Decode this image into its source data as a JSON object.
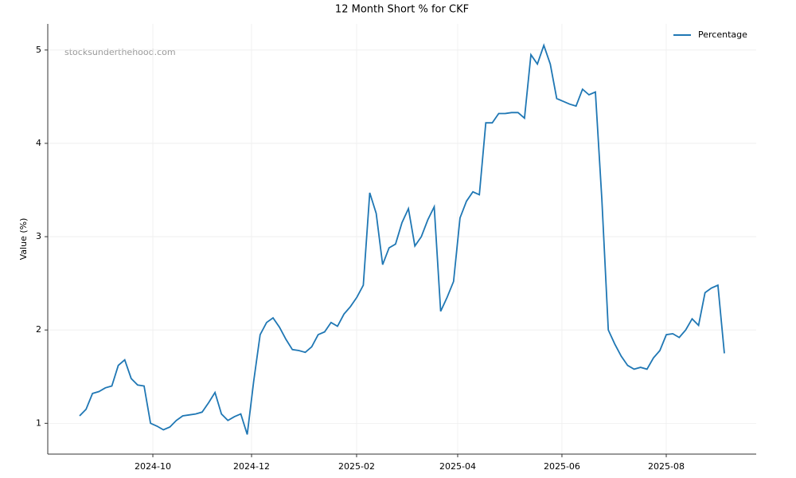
{
  "chart_data": {
    "type": "line",
    "title": "12 Month Short % for CKF",
    "ylabel": "Value (%)",
    "watermark": "stocksunderthehood.com",
    "legend": "upper right",
    "grid": true,
    "xlim": [
      -4.94,
      104.94
    ],
    "xticks": [
      {
        "value": 11.36,
        "label": "2024-10"
      },
      {
        "value": 26.67,
        "label": "2024-12"
      },
      {
        "value": 42.96,
        "label": "2025-02"
      },
      {
        "value": 58.64,
        "label": "2025-04"
      },
      {
        "value": 74.81,
        "label": "2025-06"
      },
      {
        "value": 90.99,
        "label": "2025-08"
      }
    ],
    "ylim": [
      0.67,
      5.28
    ],
    "yticks": [
      1,
      2,
      3,
      4,
      5
    ],
    "series": [
      {
        "name": "Percentage",
        "color": "#1f77b4",
        "values": [
          1.08,
          1.15,
          1.32,
          1.34,
          1.38,
          1.4,
          1.62,
          1.68,
          1.48,
          1.41,
          1.4,
          1.0,
          0.97,
          0.93,
          0.96,
          1.03,
          1.08,
          1.09,
          1.1,
          1.12,
          1.22,
          1.33,
          1.1,
          1.03,
          1.07,
          1.1,
          0.88,
          1.45,
          1.95,
          2.08,
          2.13,
          2.03,
          1.9,
          1.79,
          1.78,
          1.76,
          1.82,
          1.95,
          1.98,
          2.08,
          2.04,
          2.17,
          2.25,
          2.35,
          2.48,
          3.47,
          3.25,
          2.7,
          2.88,
          2.92,
          3.15,
          3.3,
          2.9,
          3.0,
          3.18,
          3.32,
          2.2,
          2.35,
          2.52,
          3.2,
          3.38,
          3.48,
          3.45,
          4.22,
          4.22,
          4.32,
          4.32,
          4.33,
          4.33,
          4.27,
          4.95,
          4.85,
          5.05,
          4.85,
          4.48,
          4.45,
          4.42,
          4.4,
          4.58,
          4.52,
          4.55,
          3.4,
          2.0,
          1.85,
          1.72,
          1.62,
          1.58,
          1.6,
          1.58,
          1.7,
          1.78,
          1.95,
          1.96,
          1.92,
          2.0,
          2.12,
          2.05,
          2.4,
          2.45,
          2.48,
          1.75
        ]
      }
    ]
  }
}
